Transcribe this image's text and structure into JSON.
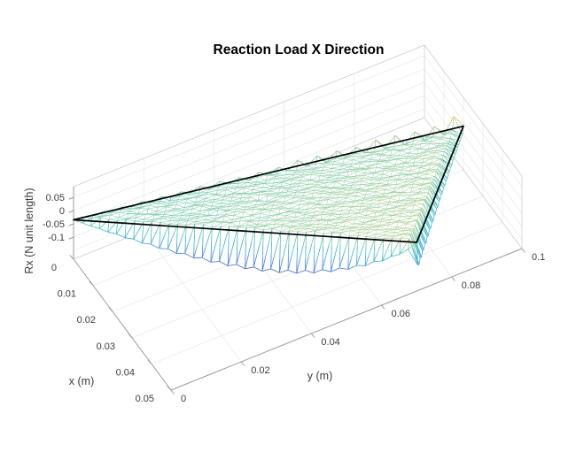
{
  "figure": {
    "background": "#ffffff"
  },
  "chart_data": {
    "type": "mesh3d",
    "title": "Reaction Load X Direction",
    "axes": {
      "x": {
        "label": "x (m)",
        "ticks": [
          0,
          0.01,
          0.02,
          0.03,
          0.04,
          0.05
        ],
        "tick_labels": [
          "0",
          "0.01",
          "0.02",
          "0.03",
          "0.04",
          "0.05"
        ],
        "range": [
          0,
          0.05
        ]
      },
      "y": {
        "label": "y (m)",
        "ticks": [
          0,
          0.02,
          0.04,
          0.06,
          0.08,
          0.1
        ],
        "tick_labels": [
          "0",
          "0.02",
          "0.04",
          "0.06",
          "0.08",
          "0.1"
        ],
        "range": [
          0,
          0.1
        ]
      },
      "z": {
        "label": "Rx (N unit length)",
        "ticks": [
          0.05,
          0,
          -0.05,
          -0.1
        ],
        "tick_labels": [
          "0.05",
          "0",
          "-0.05",
          "-0.1"
        ],
        "grid": [
          0.05,
          0,
          -0.05,
          -0.1,
          -0.15
        ]
      }
    },
    "domain": {
      "triangle": {
        "A": [
          0,
          0
        ],
        "B": [
          0.02,
          0.1
        ],
        "C": [
          0.05,
          0.07
        ]
      },
      "outline_z": {
        "A": -0.035,
        "B": -0.018,
        "C": 0
      },
      "outline_color": "#000000"
    },
    "mesh": {
      "divisions": 40,
      "interior_value": 0,
      "interior_noise": 0.012,
      "back_edge_spikes": {
        "max_up": 0.05,
        "max_down": -0.022
      },
      "front_edge_dip": {
        "max_depth": -0.148,
        "peak_t": 0.65
      },
      "right_edge_dip": {
        "max_depth": -0.112,
        "min_depth": -0.022
      }
    },
    "colormap": {
      "name": "parula",
      "stops": [
        "#352a87",
        "#0f5cdd",
        "#1481d6",
        "#06a4ca",
        "#2eb7a4",
        "#87bf77",
        "#d1bb59",
        "#fec832",
        "#f9fb0e"
      ],
      "caxis": [
        -0.165,
        0.085
      ],
      "lighten": 0.2
    },
    "view": {
      "origin": [
        83,
        238
      ],
      "ux": [
        2200,
        2960
      ],
      "uy": [
        3960,
        -1600
      ],
      "uz": -300,
      "zmin": -0.1833,
      "ztop": 0.09
    }
  },
  "styles": {
    "grid_color": "#e4e4e4",
    "box_color": "#c9c9c9",
    "axis_color": "#9a9a9a",
    "tick_label_color": "#3c3c3c",
    "label_color": "#3c3c3c",
    "title_color": "#000000"
  }
}
